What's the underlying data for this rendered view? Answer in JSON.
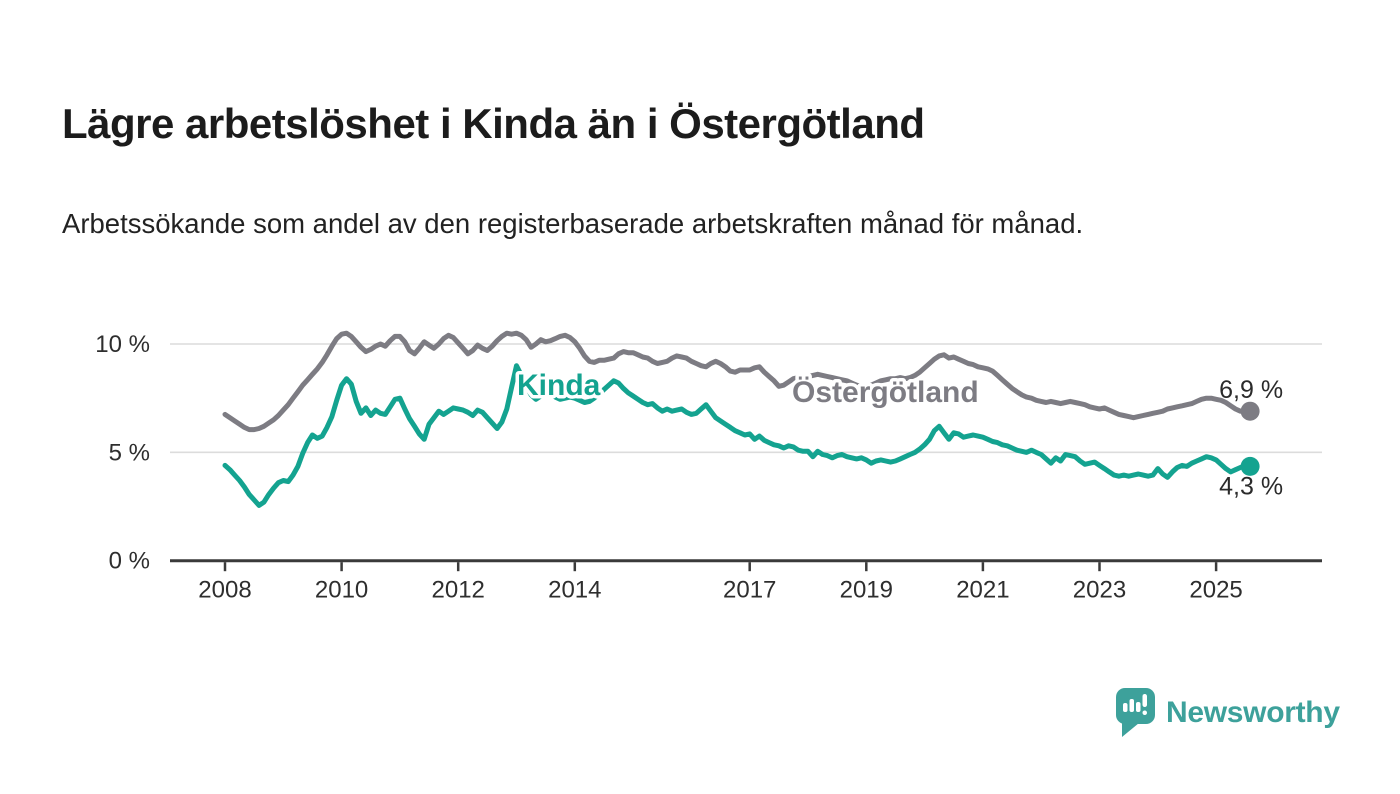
{
  "header": {
    "title": "Lägre arbetslöshet i Kinda än i Östergötland",
    "subtitle": "Arbetssökande som andel av den registerbaserade arbetskraften månad för månad."
  },
  "footer": {
    "brand": "Newsworthy",
    "brand_color": "#3da19b"
  },
  "chart_data": {
    "type": "line",
    "title": "",
    "xlabel": "",
    "ylabel": "",
    "grid": "horizontal",
    "legend_position": "inline-labels",
    "x_start_year": 2008,
    "x_months_per_point": 1,
    "x_end": "2025-08",
    "ylim": [
      0,
      11.5
    ],
    "y_ticks": [
      {
        "value": 0,
        "label": "0 %"
      },
      {
        "value": 5,
        "label": "5 %"
      },
      {
        "value": 10,
        "label": "10 %"
      }
    ],
    "x_ticks": [
      {
        "value": 2008,
        "label": "2008"
      },
      {
        "value": 2010,
        "label": "2010"
      },
      {
        "value": 2012,
        "label": "2012"
      },
      {
        "value": 2014,
        "label": "2014"
      },
      {
        "value": 2017,
        "label": "2017"
      },
      {
        "value": 2019,
        "label": "2019"
      },
      {
        "value": 2021,
        "label": "2021"
      },
      {
        "value": 2023,
        "label": "2023"
      },
      {
        "value": 2025,
        "label": "2025"
      }
    ],
    "series": [
      {
        "name": "Östergötland",
        "color": "#7d7c83",
        "end_label": "6,9 %",
        "end_value": 6.9,
        "values": [
          6.75,
          6.6,
          6.45,
          6.3,
          6.15,
          6.05,
          6.05,
          6.1,
          6.2,
          6.35,
          6.5,
          6.7,
          6.95,
          7.2,
          7.5,
          7.8,
          8.1,
          8.35,
          8.6,
          8.85,
          9.15,
          9.5,
          9.9,
          10.25,
          10.45,
          10.5,
          10.35,
          10.1,
          9.85,
          9.65,
          9.75,
          9.9,
          10.0,
          9.9,
          10.15,
          10.35,
          10.35,
          10.1,
          9.7,
          9.55,
          9.8,
          10.1,
          9.95,
          9.8,
          10.0,
          10.25,
          10.4,
          10.3,
          10.05,
          9.8,
          9.55,
          9.7,
          9.95,
          9.8,
          9.7,
          9.9,
          10.15,
          10.35,
          10.5,
          10.45,
          10.5,
          10.4,
          10.2,
          9.85,
          10.0,
          10.2,
          10.1,
          10.15,
          10.25,
          10.35,
          10.4,
          10.3,
          10.1,
          9.8,
          9.45,
          9.2,
          9.15,
          9.25,
          9.25,
          9.3,
          9.35,
          9.55,
          9.65,
          9.6,
          9.6,
          9.5,
          9.4,
          9.35,
          9.2,
          9.1,
          9.15,
          9.2,
          9.35,
          9.45,
          9.4,
          9.35,
          9.2,
          9.1,
          9.0,
          8.95,
          9.1,
          9.2,
          9.1,
          8.95,
          8.75,
          8.7,
          8.8,
          8.8,
          8.8,
          8.9,
          8.95,
          8.7,
          8.5,
          8.3,
          8.05,
          8.1,
          8.25,
          8.4,
          8.45,
          8.45,
          8.5,
          8.55,
          8.6,
          8.55,
          8.5,
          8.45,
          8.4,
          8.35,
          8.3,
          8.2,
          8.1,
          8.05,
          8.0,
          8.1,
          8.2,
          8.3,
          8.35,
          8.4,
          8.4,
          8.45,
          8.4,
          8.45,
          8.55,
          8.7,
          8.9,
          9.1,
          9.3,
          9.45,
          9.5,
          9.35,
          9.4,
          9.3,
          9.2,
          9.1,
          9.05,
          8.95,
          8.9,
          8.85,
          8.75,
          8.55,
          8.35,
          8.15,
          7.95,
          7.8,
          7.65,
          7.55,
          7.5,
          7.4,
          7.35,
          7.3,
          7.35,
          7.3,
          7.25,
          7.3,
          7.35,
          7.3,
          7.25,
          7.2,
          7.1,
          7.05,
          7.0,
          7.05,
          6.95,
          6.85,
          6.75,
          6.7,
          6.65,
          6.6,
          6.65,
          6.7,
          6.75,
          6.8,
          6.85,
          6.9,
          7.0,
          7.05,
          7.1,
          7.15,
          7.2,
          7.25,
          7.35,
          7.45,
          7.5,
          7.5,
          7.45,
          7.4,
          7.3,
          7.15,
          7.0,
          6.9,
          6.95,
          6.9
        ]
      },
      {
        "name": "Kinda",
        "color": "#14a390",
        "end_label": "4,3 %",
        "end_value": 4.3,
        "values": [
          4.4,
          4.2,
          3.95,
          3.7,
          3.4,
          3.05,
          2.8,
          2.55,
          2.7,
          3.05,
          3.35,
          3.6,
          3.7,
          3.65,
          3.95,
          4.35,
          4.95,
          5.45,
          5.8,
          5.65,
          5.75,
          6.15,
          6.65,
          7.4,
          8.1,
          8.4,
          8.15,
          7.35,
          6.8,
          7.05,
          6.7,
          6.95,
          6.8,
          6.75,
          7.1,
          7.45,
          7.5,
          7.0,
          6.55,
          6.2,
          5.85,
          5.6,
          6.3,
          6.6,
          6.9,
          6.75,
          6.9,
          7.05,
          7.0,
          6.95,
          6.85,
          6.7,
          6.95,
          6.85,
          6.6,
          6.35,
          6.1,
          6.4,
          7.0,
          8.0,
          9.0,
          8.55,
          8.05,
          7.65,
          7.45,
          7.6,
          7.9,
          7.75,
          7.55,
          7.45,
          7.5,
          7.55,
          7.5,
          7.4,
          7.3,
          7.35,
          7.5,
          7.7,
          7.9,
          8.1,
          8.3,
          8.2,
          7.95,
          7.75,
          7.6,
          7.45,
          7.3,
          7.2,
          7.25,
          7.05,
          6.9,
          7.0,
          6.9,
          6.95,
          7.0,
          6.85,
          6.75,
          6.8,
          7.0,
          7.2,
          6.9,
          6.6,
          6.45,
          6.3,
          6.15,
          6.0,
          5.9,
          5.8,
          5.85,
          5.6,
          5.75,
          5.55,
          5.45,
          5.35,
          5.3,
          5.2,
          5.3,
          5.25,
          5.1,
          5.05,
          5.05,
          4.8,
          5.05,
          4.9,
          4.85,
          4.75,
          4.85,
          4.9,
          4.8,
          4.75,
          4.7,
          4.75,
          4.65,
          4.5,
          4.6,
          4.65,
          4.6,
          4.55,
          4.6,
          4.7,
          4.8,
          4.9,
          5.0,
          5.15,
          5.35,
          5.6,
          6.0,
          6.2,
          5.9,
          5.6,
          5.9,
          5.85,
          5.7,
          5.75,
          5.8,
          5.75,
          5.7,
          5.6,
          5.5,
          5.45,
          5.35,
          5.3,
          5.2,
          5.1,
          5.05,
          5.0,
          5.1,
          5.0,
          4.9,
          4.7,
          4.5,
          4.75,
          4.6,
          4.9,
          4.85,
          4.8,
          4.6,
          4.45,
          4.5,
          4.55,
          4.4,
          4.25,
          4.1,
          3.95,
          3.9,
          3.95,
          3.9,
          3.95,
          4.0,
          3.95,
          3.9,
          3.95,
          4.25,
          4.0,
          3.85,
          4.1,
          4.3,
          4.4,
          4.35,
          4.5,
          4.6,
          4.7,
          4.8,
          4.75,
          4.65,
          4.45,
          4.25,
          4.1,
          4.2,
          4.3,
          4.4,
          4.35
        ]
      }
    ]
  }
}
